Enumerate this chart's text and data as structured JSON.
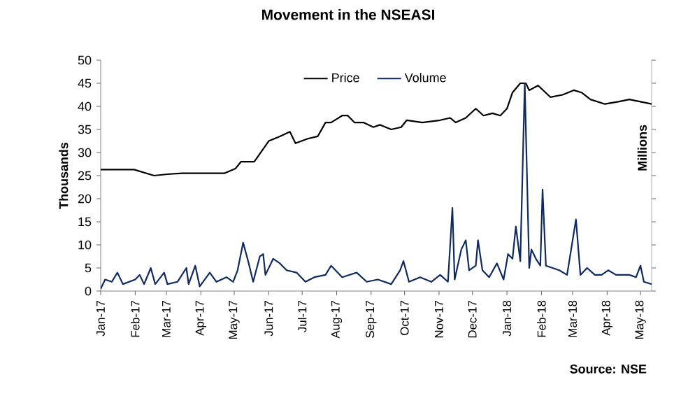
{
  "chart_data": {
    "type": "line",
    "title": "Movement in the NSEASI",
    "ylabel": "Thousands",
    "y2label": "Millions",
    "xlim": [
      "2017-01-01",
      "2018-05-11"
    ],
    "xticks": [
      {
        "value": "2017-01-01",
        "label": "Jan-17"
      },
      {
        "value": "2017-02-01",
        "label": "Feb-17"
      },
      {
        "value": "2017-03-01",
        "label": "Mar-17"
      },
      {
        "value": "2017-04-01",
        "label": "Apr-17"
      },
      {
        "value": "2017-05-01",
        "label": "May-17"
      },
      {
        "value": "2017-06-01",
        "label": "Jun-17"
      },
      {
        "value": "2017-07-01",
        "label": "Jul-17"
      },
      {
        "value": "2017-08-01",
        "label": "Aug-17"
      },
      {
        "value": "2017-09-01",
        "label": "Sep-17"
      },
      {
        "value": "2017-10-01",
        "label": "Oct-17"
      },
      {
        "value": "2017-11-01",
        "label": "Nov-17"
      },
      {
        "value": "2017-12-01",
        "label": "Dec-17"
      },
      {
        "value": "2018-01-01",
        "label": "Jan-18"
      },
      {
        "value": "2018-02-01",
        "label": "Feb-18"
      },
      {
        "value": "2018-03-01",
        "label": "Mar-18"
      },
      {
        "value": "2018-04-01",
        "label": "Apr-18"
      },
      {
        "value": "2018-05-01",
        "label": "May-18"
      }
    ],
    "ylim": [
      0,
      50
    ],
    "yticks": [
      0,
      5,
      10,
      15,
      20,
      25,
      30,
      35,
      40,
      45,
      50
    ],
    "legend": "top",
    "annotations": [
      "Source: NSE"
    ],
    "series": [
      {
        "name": "Price",
        "color": "#000000",
        "x": [
          "2017-01-01",
          "2017-01-31",
          "2017-02-18",
          "2017-03-02",
          "2017-03-15",
          "2017-04-03",
          "2017-04-22",
          "2017-05-02",
          "2017-05-07",
          "2017-05-19",
          "2017-06-01",
          "2017-06-11",
          "2017-06-20",
          "2017-06-25",
          "2017-07-06",
          "2017-07-15",
          "2017-07-22",
          "2017-07-27",
          "2017-08-06",
          "2017-08-11",
          "2017-08-17",
          "2017-08-25",
          "2017-09-03",
          "2017-09-09",
          "2017-09-19",
          "2017-09-28",
          "2017-10-03",
          "2017-10-17",
          "2017-11-02",
          "2017-11-11",
          "2017-11-16",
          "2017-11-25",
          "2017-12-04",
          "2017-12-11",
          "2017-12-19",
          "2017-12-26",
          "2018-01-01",
          "2018-01-06",
          "2018-01-13",
          "2018-01-18",
          "2018-01-21",
          "2018-01-29",
          "2018-02-09",
          "2018-02-20",
          "2018-03-02",
          "2018-03-09",
          "2018-03-17",
          "2018-03-30",
          "2018-04-11",
          "2018-04-21",
          "2018-05-01",
          "2018-05-11"
        ],
        "values": [
          26.3,
          26.3,
          25.0,
          25.3,
          25.5,
          25.5,
          25.5,
          26.5,
          28.0,
          28.0,
          32.5,
          33.5,
          34.5,
          32.0,
          33.0,
          33.5,
          36.5,
          36.5,
          38.0,
          38.0,
          36.5,
          36.5,
          35.5,
          36.0,
          35.0,
          35.5,
          37.0,
          36.5,
          37.0,
          37.5,
          36.5,
          37.5,
          39.5,
          38.0,
          38.5,
          38.0,
          39.5,
          43.0,
          45.0,
          45.0,
          43.5,
          44.5,
          42.0,
          42.5,
          43.5,
          43.0,
          41.5,
          40.5,
          41.0,
          41.5,
          41.0,
          40.5
        ]
      },
      {
        "name": "Volume",
        "color": "#0f2a5e",
        "x": [
          "2017-01-01",
          "2017-01-05",
          "2017-01-11",
          "2017-01-16",
          "2017-01-21",
          "2017-02-01",
          "2017-02-05",
          "2017-02-09",
          "2017-02-15",
          "2017-02-19",
          "2017-02-27",
          "2017-03-02",
          "2017-03-11",
          "2017-03-19",
          "2017-03-21",
          "2017-03-27",
          "2017-03-31",
          "2017-04-09",
          "2017-04-15",
          "2017-04-24",
          "2017-04-30",
          "2017-05-04",
          "2017-05-09",
          "2017-05-14",
          "2017-05-18",
          "2017-05-24",
          "2017-05-27",
          "2017-05-29",
          "2017-06-05",
          "2017-06-11",
          "2017-06-17",
          "2017-06-26",
          "2017-07-04",
          "2017-07-12",
          "2017-07-22",
          "2017-07-27",
          "2017-08-06",
          "2017-08-19",
          "2017-08-28",
          "2017-09-07",
          "2017-09-19",
          "2017-09-27",
          "2017-09-30",
          "2017-10-05",
          "2017-10-15",
          "2017-10-25",
          "2017-11-02",
          "2017-11-09",
          "2017-11-13",
          "2017-11-15",
          "2017-11-21",
          "2017-11-25",
          "2017-11-28",
          "2017-12-04",
          "2017-12-06",
          "2017-12-10",
          "2017-12-16",
          "2017-12-23",
          "2017-12-29",
          "2018-01-02",
          "2018-01-06",
          "2018-01-09",
          "2018-01-13",
          "2018-01-17",
          "2018-01-21",
          "2018-01-23",
          "2018-01-27",
          "2018-01-31",
          "2018-02-02",
          "2018-02-05",
          "2018-02-11",
          "2018-02-17",
          "2018-02-24",
          "2018-03-04",
          "2018-03-08",
          "2018-03-14",
          "2018-03-21",
          "2018-03-27",
          "2018-04-02",
          "2018-04-09",
          "2018-04-21",
          "2018-04-27",
          "2018-05-01",
          "2018-05-04",
          "2018-05-11"
        ],
        "values": [
          0.5,
          2.5,
          2,
          4,
          1.5,
          2.5,
          3.5,
          1.5,
          5,
          1.5,
          4,
          1.5,
          2,
          5,
          1.5,
          5.5,
          1,
          4,
          2,
          3,
          2,
          4.5,
          10.5,
          6,
          2,
          7.5,
          8,
          3.5,
          7,
          6,
          4.5,
          4,
          2,
          3,
          3.5,
          5.5,
          3,
          4,
          2,
          2.5,
          1.5,
          4.5,
          6.5,
          2,
          3,
          2,
          3.5,
          2,
          18,
          2.5,
          9,
          11,
          4.5,
          5.5,
          11,
          4.5,
          3,
          6,
          2.5,
          8,
          7,
          14,
          6.5,
          45,
          5,
          9,
          7,
          5.5,
          22,
          5.5,
          5,
          4.5,
          3.5,
          15.5,
          3.5,
          5,
          3.5,
          3.5,
          4.5,
          3.5,
          3.5,
          3,
          5.5,
          2,
          1.5
        ]
      }
    ]
  }
}
